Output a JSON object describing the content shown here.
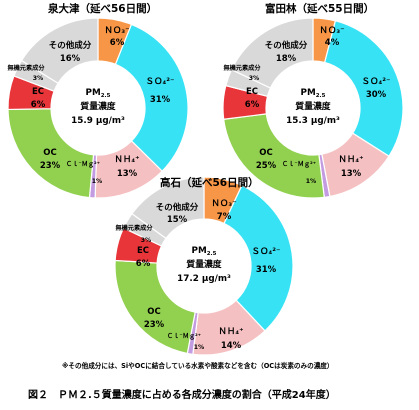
{
  "chart_data": [
    {
      "type": "pie",
      "title": "泉大津（延べ56日間）",
      "center": {
        "line1": "PM",
        "sub": "2.5",
        "line2": "質量濃度",
        "line3": "15.9 μg/m³"
      },
      "slices": [
        {
          "name": "ＮＯ₃⁻",
          "value": 6,
          "label": "6%",
          "color": "#f79646"
        },
        {
          "name": "ＳＯ₄²⁻",
          "value": 31,
          "label": "31%",
          "color": "#37e2f5"
        },
        {
          "name": "ＮＨ₄⁺",
          "value": 13,
          "label": "13%",
          "color": "#f5c0c2"
        },
        {
          "name": "Ｃｌ⁻Ｍｇ²⁺",
          "value": 1,
          "label": "1%",
          "color": "#c39be0"
        },
        {
          "name": "OC",
          "value": 23,
          "label": "23%",
          "color": "#92d050"
        },
        {
          "name": "EC",
          "value": 6,
          "label": "6%",
          "color": "#e8353a"
        },
        {
          "name": "無機元素成分",
          "value": 3,
          "label": "3%",
          "color": "#d9d9d9"
        },
        {
          "name": "その他成分",
          "value": 16,
          "label": "16%",
          "color": "#d9d9d9"
        }
      ]
    },
    {
      "type": "pie",
      "title": "富田林（延べ55日間）",
      "center": {
        "line1": "PM",
        "sub": "2.5",
        "line2": "質量濃度",
        "line3": "15.3 μg/m³"
      },
      "slices": [
        {
          "name": "ＮＯ₃⁻",
          "value": 4,
          "label": "4%",
          "color": "#f79646"
        },
        {
          "name": "ＳＯ₄²⁻",
          "value": 30,
          "label": "30%",
          "color": "#37e2f5"
        },
        {
          "name": "ＮＨ₄⁺",
          "value": 13,
          "label": "13%",
          "color": "#f5c0c2"
        },
        {
          "name": "Ｃｌ⁻Ｍｇ²⁺",
          "value": 1,
          "label": "1%",
          "color": "#c39be0"
        },
        {
          "name": "OC",
          "value": 25,
          "label": "25%",
          "color": "#92d050"
        },
        {
          "name": "EC",
          "value": 6,
          "label": "6%",
          "color": "#e8353a"
        },
        {
          "name": "無機元素成分",
          "value": 3,
          "label": "3%",
          "color": "#d9d9d9"
        },
        {
          "name": "その他成分",
          "value": 18,
          "label": "18%",
          "color": "#d9d9d9"
        }
      ]
    },
    {
      "type": "pie",
      "title": "高石（延べ56日間）",
      "center": {
        "line1": "PM",
        "sub": "2.5",
        "line2": "質量濃度",
        "line3": "17.2 μg/m³"
      },
      "slices": [
        {
          "name": "ＮＯ₃⁻",
          "value": 7,
          "label": "7%",
          "color": "#f79646"
        },
        {
          "name": "ＳＯ₄²⁻",
          "value": 31,
          "label": "31%",
          "color": "#37e2f5"
        },
        {
          "name": "ＮＨ₄⁺",
          "value": 14,
          "label": "14%",
          "color": "#f5c0c2"
        },
        {
          "name": "Ｃｌ⁻Ｍｇ²⁺",
          "value": 1,
          "label": "1%",
          "color": "#c39be0"
        },
        {
          "name": "OC",
          "value": 23,
          "label": "23%",
          "color": "#92d050"
        },
        {
          "name": "EC",
          "value": 6,
          "label": "6%",
          "color": "#e8353a"
        },
        {
          "name": "無機元素成分",
          "value": 3,
          "label": "3%",
          "color": "#d9d9d9"
        },
        {
          "name": "その他成分",
          "value": 15,
          "label": "15%",
          "color": "#d9d9d9"
        }
      ]
    }
  ],
  "footnote": "※その他成分には、SiやOCに結合している水素や酸素などを含む（OCは炭素のみの濃度）",
  "caption": "図２　ＰＭ２.５質量濃度に占める各成分濃度の割合（平成24年度）"
}
